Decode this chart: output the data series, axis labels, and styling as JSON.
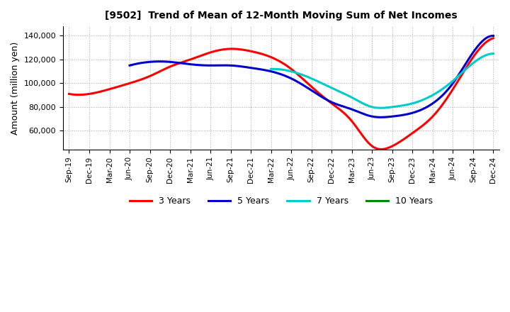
{
  "title": "[9502]  Trend of Mean of 12-Month Moving Sum of Net Incomes",
  "ylabel": "Amount (million yen)",
  "background_color": "#ffffff",
  "grid_color": "#aaaaaa",
  "ylim": [
    44000,
    148000
  ],
  "yticks": [
    60000,
    80000,
    100000,
    120000,
    140000
  ],
  "x_labels": [
    "Sep-19",
    "Dec-19",
    "Mar-20",
    "Jun-20",
    "Sep-20",
    "Dec-20",
    "Mar-21",
    "Jun-21",
    "Sep-21",
    "Dec-21",
    "Mar-22",
    "Jun-22",
    "Sep-22",
    "Dec-22",
    "Mar-23",
    "Jun-23",
    "Sep-23",
    "Dec-23",
    "Mar-24",
    "Jun-24",
    "Sep-24",
    "Dec-24"
  ],
  "legend_labels": [
    "3 Years",
    "5 Years",
    "7 Years",
    "10 Years"
  ],
  "legend_colors": [
    "#ff0000",
    "#0000cc",
    "#00cccc",
    "#008800"
  ],
  "series": {
    "3yr": {
      "color": "#ff0000",
      "points": [
        91000,
        91000,
        95000,
        100000,
        106000,
        114000,
        120000,
        126000,
        129000,
        127000,
        122000,
        112000,
        97000,
        83000,
        68000,
        47000,
        47000,
        58000,
        72000,
        95000,
        122000,
        138000
      ]
    },
    "5yr": {
      "color": "#0000cc",
      "points": [
        null,
        null,
        null,
        115000,
        118000,
        118000,
        116000,
        115000,
        115000,
        113000,
        110000,
        104000,
        94000,
        84000,
        78000,
        72000,
        72000,
        75000,
        83000,
        100000,
        126000,
        140000
      ]
    },
    "7yr": {
      "color": "#00cccc",
      "points": [
        null,
        null,
        null,
        null,
        null,
        null,
        null,
        null,
        null,
        null,
        112000,
        110000,
        104000,
        96000,
        88000,
        80000,
        80000,
        83000,
        90000,
        102000,
        117000,
        125000
      ]
    },
    "10yr": {
      "color": "#008800",
      "points": [
        null,
        null,
        null,
        null,
        null,
        null,
        null,
        null,
        null,
        null,
        null,
        null,
        null,
        null,
        null,
        null,
        null,
        null,
        null,
        null,
        null,
        null
      ]
    }
  }
}
